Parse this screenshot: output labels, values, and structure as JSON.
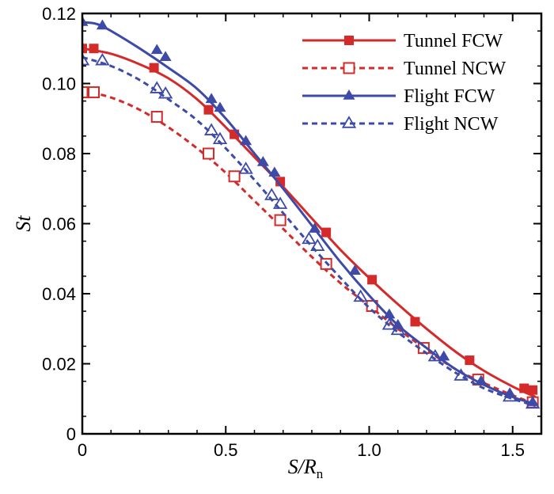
{
  "chart_data": {
    "type": "line",
    "title": "",
    "xlabel": "S/R",
    "xlabel_subscript": "n",
    "ylabel": "St",
    "xlim": [
      0,
      1.6
    ],
    "ylim": [
      0,
      0.12
    ],
    "xticks": [
      0,
      0.5,
      1.0,
      1.5
    ],
    "xtick_labels": [
      "0",
      "0.5",
      "1.0",
      "1.5"
    ],
    "yticks": [
      0,
      0.02,
      0.04,
      0.06,
      0.08,
      0.1,
      0.12
    ],
    "ytick_labels": [
      "0",
      "0.02",
      "0.04",
      "0.06",
      "0.08",
      "0.10",
      "0.12"
    ],
    "grid": false,
    "legend_position": "top-right",
    "series": [
      {
        "name": "Tunnel FCW",
        "color": "#d42a2a",
        "dash": "solid",
        "marker": "square-filled",
        "curve": [
          [
            0,
            0.11
          ],
          [
            0.1,
            0.1085
          ],
          [
            0.2,
            0.1055
          ],
          [
            0.3,
            0.1015
          ],
          [
            0.4,
            0.0955
          ],
          [
            0.5,
            0.0875
          ],
          [
            0.6,
            0.079
          ],
          [
            0.7,
            0.0705
          ],
          [
            0.8,
            0.0615
          ],
          [
            0.9,
            0.0525
          ],
          [
            1.0,
            0.0445
          ],
          [
            1.1,
            0.037
          ],
          [
            1.2,
            0.03
          ],
          [
            1.3,
            0.0235
          ],
          [
            1.4,
            0.018
          ],
          [
            1.5,
            0.0135
          ],
          [
            1.58,
            0.0105
          ]
        ],
        "markers": [
          [
            0.0,
            0.11
          ],
          [
            0.04,
            0.11
          ],
          [
            0.25,
            0.1045
          ],
          [
            0.44,
            0.0925
          ],
          [
            0.53,
            0.0855
          ],
          [
            0.69,
            0.072
          ],
          [
            0.85,
            0.0575
          ],
          [
            1.01,
            0.044
          ],
          [
            1.16,
            0.032
          ],
          [
            1.35,
            0.021
          ],
          [
            1.54,
            0.013
          ],
          [
            1.57,
            0.0125
          ]
        ]
      },
      {
        "name": "Tunnel NCW",
        "color": "#d42a2a",
        "dash": "dashed",
        "marker": "square-open",
        "curve": [
          [
            0,
            0.098
          ],
          [
            0.1,
            0.096
          ],
          [
            0.2,
            0.0925
          ],
          [
            0.3,
            0.0875
          ],
          [
            0.4,
            0.0815
          ],
          [
            0.5,
            0.0745
          ],
          [
            0.6,
            0.0665
          ],
          [
            0.7,
            0.0585
          ],
          [
            0.8,
            0.0505
          ],
          [
            0.9,
            0.043
          ],
          [
            1.0,
            0.0365
          ],
          [
            1.1,
            0.03
          ],
          [
            1.2,
            0.024
          ],
          [
            1.3,
            0.0185
          ],
          [
            1.4,
            0.0145
          ],
          [
            1.5,
            0.011
          ],
          [
            1.58,
            0.0085
          ]
        ],
        "markers": [
          [
            0.0,
            0.0975
          ],
          [
            0.04,
            0.0975
          ],
          [
            0.26,
            0.0905
          ],
          [
            0.44,
            0.08
          ],
          [
            0.53,
            0.0735
          ],
          [
            0.69,
            0.061
          ],
          [
            0.85,
            0.0485
          ],
          [
            1.01,
            0.0365
          ],
          [
            1.19,
            0.0245
          ],
          [
            1.38,
            0.0155
          ],
          [
            1.57,
            0.009
          ]
        ]
      },
      {
        "name": "Flight FCW",
        "color": "#3d4aa8",
        "dash": "solid",
        "marker": "triangle-filled",
        "curve": [
          [
            0,
            0.1175
          ],
          [
            0.05,
            0.117
          ],
          [
            0.1,
            0.115
          ],
          [
            0.2,
            0.11
          ],
          [
            0.3,
            0.1045
          ],
          [
            0.4,
            0.0985
          ],
          [
            0.5,
            0.09
          ],
          [
            0.6,
            0.08
          ],
          [
            0.7,
            0.07
          ],
          [
            0.8,
            0.0595
          ],
          [
            0.9,
            0.049
          ],
          [
            1.0,
            0.0395
          ],
          [
            1.1,
            0.031
          ],
          [
            1.2,
            0.0245
          ],
          [
            1.3,
            0.0185
          ],
          [
            1.4,
            0.014
          ],
          [
            1.5,
            0.0105
          ],
          [
            1.58,
            0.0085
          ]
        ],
        "markers": [
          [
            0.0,
            0.1175
          ],
          [
            0.07,
            0.1165
          ],
          [
            0.26,
            0.1095
          ],
          [
            0.29,
            0.1075
          ],
          [
            0.45,
            0.0955
          ],
          [
            0.48,
            0.093
          ],
          [
            0.57,
            0.0835
          ],
          [
            0.63,
            0.0775
          ],
          [
            0.67,
            0.0745
          ],
          [
            0.81,
            0.0585
          ],
          [
            0.95,
            0.0465
          ],
          [
            1.07,
            0.034
          ],
          [
            1.1,
            0.031
          ],
          [
            1.26,
            0.022
          ],
          [
            1.39,
            0.015
          ],
          [
            1.49,
            0.0115
          ],
          [
            1.57,
            0.009
          ]
        ]
      },
      {
        "name": "Flight NCW",
        "color": "#3d4aa8",
        "dash": "dashed",
        "marker": "triangle-open",
        "curve": [
          [
            0,
            0.1075
          ],
          [
            0.1,
            0.105
          ],
          [
            0.2,
            0.101
          ],
          [
            0.3,
            0.0955
          ],
          [
            0.4,
            0.0895
          ],
          [
            0.5,
            0.0815
          ],
          [
            0.6,
            0.0725
          ],
          [
            0.7,
            0.063
          ],
          [
            0.8,
            0.0535
          ],
          [
            0.9,
            0.0445
          ],
          [
            1.0,
            0.036
          ],
          [
            1.1,
            0.029
          ],
          [
            1.2,
            0.023
          ],
          [
            1.3,
            0.0175
          ],
          [
            1.4,
            0.013
          ],
          [
            1.5,
            0.01
          ],
          [
            1.58,
            0.008
          ]
        ],
        "markers": [
          [
            0.0,
            0.1065
          ],
          [
            0.07,
            0.1065
          ],
          [
            0.26,
            0.0985
          ],
          [
            0.29,
            0.097
          ],
          [
            0.45,
            0.0865
          ],
          [
            0.48,
            0.084
          ],
          [
            0.57,
            0.0755
          ],
          [
            0.66,
            0.068
          ],
          [
            0.69,
            0.0655
          ],
          [
            0.79,
            0.0555
          ],
          [
            0.82,
            0.0535
          ],
          [
            0.97,
            0.039
          ],
          [
            1.07,
            0.031
          ],
          [
            1.1,
            0.0295
          ],
          [
            1.23,
            0.022
          ],
          [
            1.32,
            0.0165
          ],
          [
            1.49,
            0.0105
          ],
          [
            1.57,
            0.0085
          ]
        ]
      }
    ]
  }
}
